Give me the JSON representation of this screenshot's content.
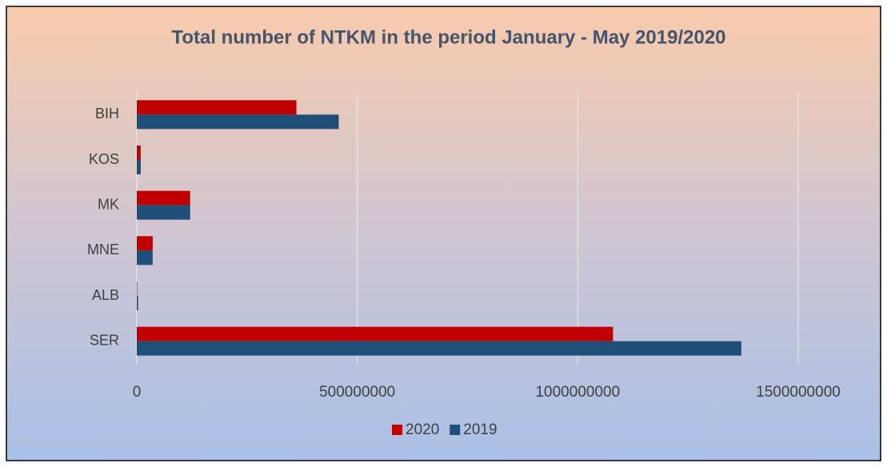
{
  "chart_data": {
    "type": "hbar",
    "title": "Total number of NTKM in the period January - May 2019/2020",
    "categories": [
      "BIH",
      "KOS",
      "MK",
      "MNE",
      "ALB",
      "SER"
    ],
    "series": [
      {
        "name": "2020",
        "color": "#c00000",
        "values": [
          362000000,
          9000000,
          121000000,
          36000000,
          1000000,
          1080000000
        ]
      },
      {
        "name": "2019",
        "color": "#1f4e79",
        "values": [
          458000000,
          9000000,
          121000000,
          36000000,
          3000000,
          1371000000
        ]
      }
    ],
    "xlim": [
      0,
      1500000000
    ],
    "xticks": [
      0,
      500000000,
      1000000000,
      1500000000
    ],
    "grid": true,
    "legend": "bottom"
  }
}
